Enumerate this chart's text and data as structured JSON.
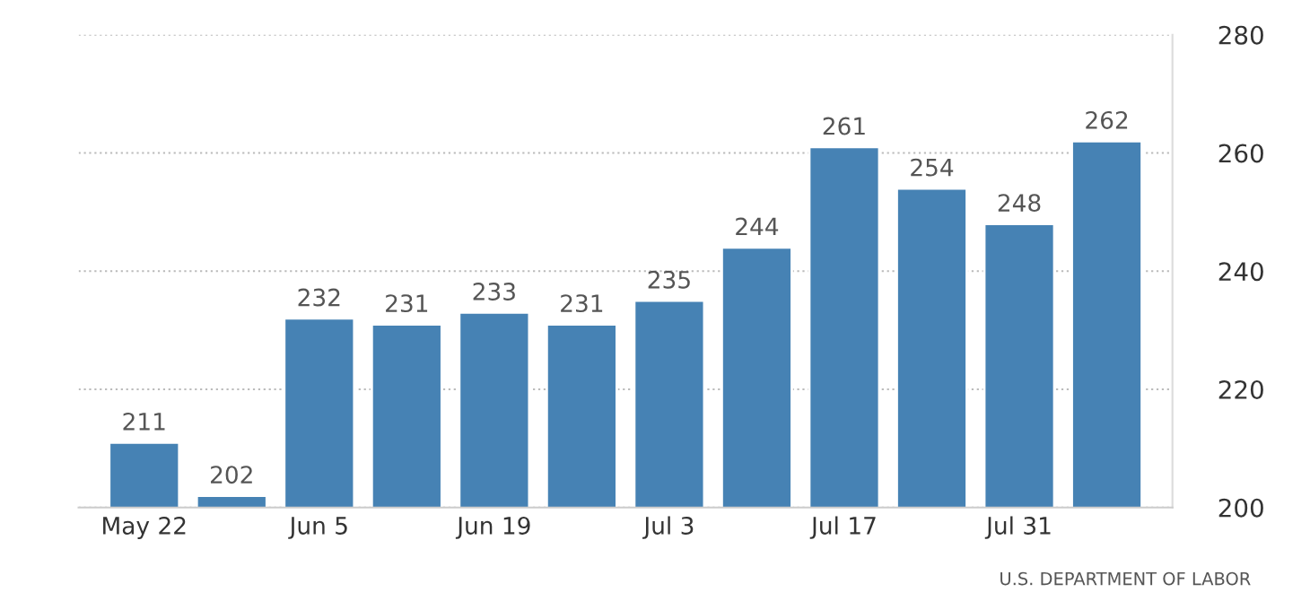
{
  "chart_data": {
    "type": "bar",
    "categories": [
      "May 22",
      null,
      "Jun 5",
      null,
      "Jun 19",
      null,
      "Jul 3",
      null,
      "Jul 17",
      null,
      "Jul 31",
      null
    ],
    "values": [
      211,
      202,
      232,
      231,
      233,
      231,
      235,
      244,
      261,
      254,
      248,
      262
    ],
    "color": "#4682b4",
    "ylim": [
      200,
      280
    ],
    "yticks": [
      200,
      220,
      240,
      260,
      280
    ],
    "grid": "y",
    "data_labels": true,
    "annotations": [
      "U.S. DEPARTMENT OF LABOR"
    ]
  }
}
